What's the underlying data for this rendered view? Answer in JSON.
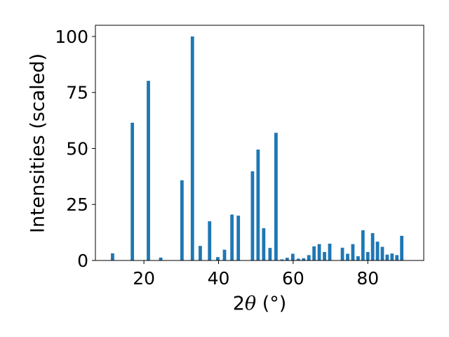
{
  "chart_data": {
    "type": "bar",
    "xlabel_prefix": "2",
    "xlabel_symbol": "θ",
    "xlabel_suffix": " (°)",
    "ylabel": "Intensities (scaled)",
    "xlim": [
      7,
      95
    ],
    "ylim": [
      0,
      105
    ],
    "bar_width": 0.9,
    "color": "#1f77b4",
    "grid": false,
    "xticks": [
      20,
      40,
      60,
      80
    ],
    "yticks": [
      0,
      25,
      50,
      75,
      100
    ],
    "x": [
      11.6,
      16.9,
      21.2,
      24.5,
      30.2,
      33.0,
      35.1,
      37.6,
      39.8,
      41.6,
      43.6,
      45.3,
      49.1,
      50.6,
      52.1,
      53.8,
      55.4,
      57.0,
      58.4,
      59.9,
      61.4,
      62.8,
      64.2,
      65.6,
      67.0,
      68.4,
      69.8,
      73.2,
      74.6,
      76.0,
      77.4,
      78.7,
      80.0,
      81.3,
      82.6,
      83.9,
      85.2,
      86.5,
      87.8,
      89.1
    ],
    "y": [
      3.2,
      61.5,
      80.2,
      1.3,
      35.8,
      100.0,
      6.5,
      17.5,
      1.5,
      4.8,
      20.5,
      20.0,
      39.8,
      49.5,
      14.4,
      5.6,
      57.0,
      0.5,
      1.2,
      3.0,
      0.8,
      1.0,
      2.4,
      6.3,
      7.3,
      3.8,
      7.5,
      5.7,
      3.0,
      7.3,
      1.9,
      13.5,
      3.8,
      12.2,
      8.4,
      6.1,
      2.6,
      3.1,
      2.4,
      11.0
    ]
  }
}
